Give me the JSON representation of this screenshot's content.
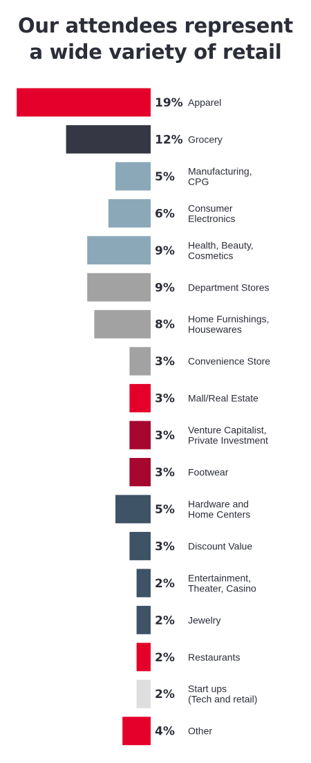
{
  "title": {
    "line1": "Our attendees represent",
    "line2": "a wide variety of retail"
  },
  "chart_data": {
    "type": "bar",
    "orientation": "horizontal",
    "value_format": "percent",
    "bars": [
      {
        "value": 19,
        "label_lines": [
          "Apparel"
        ],
        "color": "#e4002b"
      },
      {
        "value": 12,
        "label_lines": [
          "Grocery"
        ],
        "color": "#353844"
      },
      {
        "value": 5,
        "label_lines": [
          "Manufacturing,",
          "CPG"
        ],
        "color": "#8aa8b8"
      },
      {
        "value": 6,
        "label_lines": [
          "Consumer",
          "Electronics"
        ],
        "color": "#8aa8b8"
      },
      {
        "value": 9,
        "label_lines": [
          "Health, Beauty,",
          "Cosmetics"
        ],
        "color": "#8aa8b8"
      },
      {
        "value": 9,
        "label_lines": [
          "Department Stores"
        ],
        "color": "#a2a2a2"
      },
      {
        "value": 8,
        "label_lines": [
          "Home Furnishings,",
          "Housewares"
        ],
        "color": "#a2a2a2"
      },
      {
        "value": 3,
        "label_lines": [
          "Convenience Store"
        ],
        "color": "#a2a2a2"
      },
      {
        "value": 3,
        "label_lines": [
          "Mall/Real Estate"
        ],
        "color": "#e4002b"
      },
      {
        "value": 3,
        "label_lines": [
          "Venture Capitalist,",
          "Private Investment"
        ],
        "color": "#a5072f"
      },
      {
        "value": 3,
        "label_lines": [
          "Footwear"
        ],
        "color": "#a5072f"
      },
      {
        "value": 5,
        "label_lines": [
          "Hardware and",
          "Home Centers"
        ],
        "color": "#3f5366"
      },
      {
        "value": 3,
        "label_lines": [
          "Discount Value"
        ],
        "color": "#3f5366"
      },
      {
        "value": 2,
        "label_lines": [
          "Entertainment,",
          "Theater, Casino"
        ],
        "color": "#3f5366"
      },
      {
        "value": 2,
        "label_lines": [
          "Jewelry"
        ],
        "color": "#3f5366"
      },
      {
        "value": 2,
        "label_lines": [
          "Restaurants"
        ],
        "color": "#e4002b"
      },
      {
        "value": 2,
        "label_lines": [
          "Start ups",
          "(Tech and retail)"
        ],
        "color": "#dedede"
      },
      {
        "value": 4,
        "label_lines": [
          "Other"
        ],
        "color": "#e4002b"
      }
    ]
  }
}
